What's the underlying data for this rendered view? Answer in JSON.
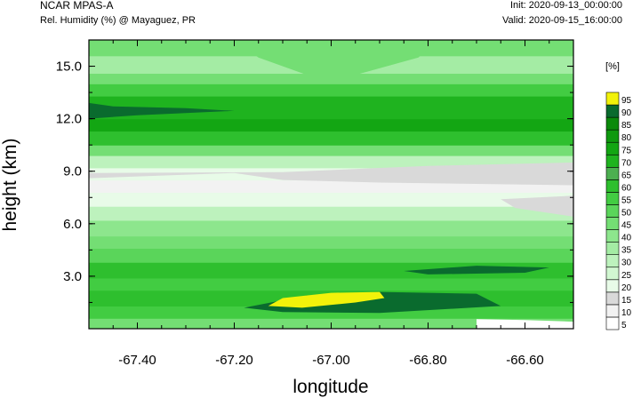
{
  "header": {
    "model": "NCAR MPAS-A",
    "field": "Rel. Humidity (%) @ Mayaguez, PR",
    "init": "Init: 2020-09-13_00:00:00",
    "valid": "Valid: 2020-09-15_16:00:00"
  },
  "chart_data": {
    "type": "heatmap",
    "xlabel": "longitude",
    "ylabel": "height (km)",
    "xlim": [
      -67.5,
      -66.5
    ],
    "ylim": [
      0,
      16.5
    ],
    "x_ticks": [
      "-67.40",
      "-67.20",
      "-67.00",
      "-66.80",
      "-66.60"
    ],
    "x_tick_values": [
      -67.4,
      -67.2,
      -67.0,
      -66.8,
      -66.6
    ],
    "y_ticks": [
      "3.0",
      "6.0",
      "9.0",
      "12.0",
      "15.0"
    ],
    "y_tick_values": [
      3,
      6,
      9,
      12,
      15
    ],
    "colorbar": {
      "unit": "[%]",
      "levels": [
        "5",
        "10",
        "15",
        "20",
        "25",
        "30",
        "35",
        "40",
        "45",
        "50",
        "55",
        "60",
        "65",
        "70",
        "75",
        "80",
        "85",
        "90",
        "95"
      ],
      "colors": [
        "#ffffff",
        "#f2f2f2",
        "#d9d9d9",
        "#e8fbe8",
        "#d1f7d1",
        "#bdf2bd",
        "#a4eca4",
        "#8de68d",
        "#74de74",
        "#5ad55a",
        "#42cc42",
        "#2ebf2e",
        "#4caf50",
        "#1fb31f",
        "#13a613",
        "#0f990f",
        "#0b8a0b",
        "#0a6b2e",
        "#f2f20a"
      ]
    },
    "bands": [
      {
        "y": [
          0.0,
          0.6
        ],
        "color": "#74de74"
      },
      {
        "y": [
          0.6,
          1.3
        ],
        "color": "#42cc42"
      },
      {
        "y": [
          1.3,
          2.2
        ],
        "color": "#2ebf2e"
      },
      {
        "y": [
          2.2,
          2.9
        ],
        "color": "#42cc42"
      },
      {
        "y": [
          2.9,
          3.8
        ],
        "color": "#2ebf2e"
      },
      {
        "y": [
          3.8,
          4.6
        ],
        "color": "#5ad55a"
      },
      {
        "y": [
          4.6,
          5.3
        ],
        "color": "#74de74"
      },
      {
        "y": [
          5.3,
          6.2
        ],
        "color": "#8de68d"
      },
      {
        "y": [
          6.2,
          7.0
        ],
        "color": "#bdf2bd"
      },
      {
        "y": [
          7.0,
          7.8
        ],
        "color": "#e8fbe8"
      },
      {
        "y": [
          7.8,
          8.5
        ],
        "color": "#f2f2f2"
      },
      {
        "y": [
          8.5,
          9.2
        ],
        "color": "#e8fbe8"
      },
      {
        "y": [
          9.2,
          9.9
        ],
        "color": "#bdf2bd"
      },
      {
        "y": [
          9.9,
          10.5
        ],
        "color": "#74de74"
      },
      {
        "y": [
          10.5,
          11.3
        ],
        "color": "#2ebf2e"
      },
      {
        "y": [
          11.3,
          12.0
        ],
        "color": "#13a613"
      },
      {
        "y": [
          12.0,
          13.3
        ],
        "color": "#1fb31f"
      },
      {
        "y": [
          13.3,
          14.0
        ],
        "color": "#42cc42"
      },
      {
        "y": [
          14.0,
          14.6
        ],
        "color": "#74de74"
      },
      {
        "y": [
          14.6,
          15.6
        ],
        "color": "#a4eca4"
      },
      {
        "y": [
          15.6,
          16.5
        ],
        "color": "#74de74"
      }
    ],
    "features": [
      {
        "kind": "poly",
        "color": "#d9d9d9",
        "pts": [
          [
            -67.5,
            8.6
          ],
          [
            -67.2,
            8.9
          ],
          [
            -67.1,
            8.5
          ],
          [
            -66.9,
            8.35
          ],
          [
            -66.5,
            8.2
          ],
          [
            -66.5,
            9.5
          ],
          [
            -66.8,
            9.3
          ],
          [
            -67.1,
            8.95
          ],
          [
            -67.5,
            8.9
          ]
        ]
      },
      {
        "kind": "poly",
        "color": "#d9d9d9",
        "pts": [
          [
            -66.62,
            6.9
          ],
          [
            -66.5,
            6.4
          ],
          [
            -66.5,
            7.6
          ],
          [
            -66.65,
            7.4
          ]
        ]
      },
      {
        "kind": "poly",
        "color": "#0a6b2e",
        "pts": [
          [
            -67.5,
            12.9
          ],
          [
            -67.45,
            12.7
          ],
          [
            -67.3,
            12.6
          ],
          [
            -67.2,
            12.45
          ],
          [
            -67.4,
            12.2
          ],
          [
            -67.5,
            12.0
          ]
        ]
      },
      {
        "kind": "poly",
        "color": "#0a6b2e",
        "pts": [
          [
            -66.85,
            3.3
          ],
          [
            -66.7,
            3.6
          ],
          [
            -66.55,
            3.5
          ],
          [
            -66.6,
            3.2
          ],
          [
            -66.8,
            3.1
          ]
        ]
      },
      {
        "kind": "poly",
        "color": "#0a6b2e",
        "pts": [
          [
            -67.18,
            1.2
          ],
          [
            -67.05,
            1.9
          ],
          [
            -66.9,
            2.1
          ],
          [
            -66.7,
            2.0
          ],
          [
            -66.65,
            1.3
          ],
          [
            -66.9,
            0.9
          ],
          [
            -67.1,
            0.95
          ]
        ]
      },
      {
        "kind": "poly",
        "color": "#f2f20a",
        "pts": [
          [
            -67.13,
            1.3
          ],
          [
            -67.1,
            1.75
          ],
          [
            -67.0,
            2.05
          ],
          [
            -66.9,
            2.1
          ],
          [
            -66.89,
            1.75
          ],
          [
            -66.95,
            1.5
          ],
          [
            -67.06,
            1.2
          ]
        ]
      },
      {
        "kind": "poly",
        "color": "#ffffff",
        "pts": [
          [
            -66.7,
            0.55
          ],
          [
            -66.6,
            0.5
          ],
          [
            -66.5,
            0.4
          ],
          [
            -66.5,
            0.0
          ],
          [
            -66.7,
            0.0
          ]
        ]
      },
      {
        "kind": "poly",
        "color": "#74de74",
        "pts": [
          [
            -67.2,
            16.5
          ],
          [
            -67.15,
            15.5
          ],
          [
            -67.05,
            14.5
          ],
          [
            -66.95,
            14.5
          ],
          [
            -66.82,
            15.5
          ],
          [
            -66.78,
            16.5
          ]
        ]
      }
    ]
  }
}
